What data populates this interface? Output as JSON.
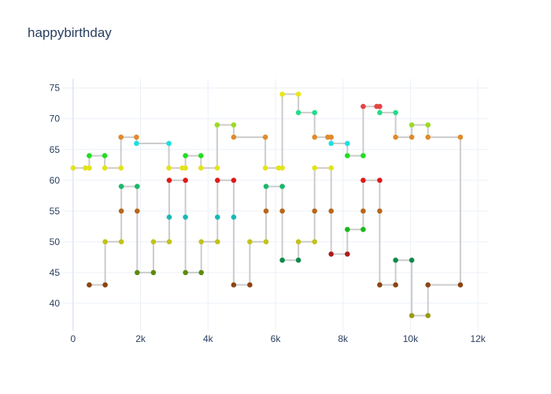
{
  "chart_data": {
    "type": "line",
    "title": "happybirthday",
    "xlabel": "",
    "ylabel": "",
    "xlim": [
      -300,
      12300
    ],
    "ylim": [
      35.5,
      76.5
    ],
    "x_ticks": [
      0,
      2000,
      4000,
      6000,
      8000,
      10000,
      12000
    ],
    "x_tick_labels": [
      "0",
      "2k",
      "4k",
      "6k",
      "8k",
      "10k",
      "12k"
    ],
    "y_ticks": [
      40,
      45,
      50,
      55,
      60,
      65,
      70,
      75
    ],
    "y_tick_labels": [
      "40",
      "45",
      "50",
      "55",
      "60",
      "65",
      "70",
      "75"
    ],
    "grid": true,
    "line_color": "#cccccc",
    "points": [
      {
        "x": 0,
        "y": 62,
        "color": "#e3e31a"
      },
      {
        "x": 360,
        "y": 62,
        "color": "#e3e31a"
      },
      {
        "x": 480,
        "y": 62,
        "color": "#e3e31a"
      },
      {
        "x": 480,
        "y": 64,
        "color": "#22dd22"
      },
      {
        "x": 940,
        "y": 64,
        "color": "#22dd22"
      },
      {
        "x": 940,
        "y": 62,
        "color": "#e3e31a"
      },
      {
        "x": 1420,
        "y": 62,
        "color": "#e3e31a"
      },
      {
        "x": 1420,
        "y": 67,
        "color": "#e08a2a"
      },
      {
        "x": 1880,
        "y": 67,
        "color": "#e08a2a"
      },
      {
        "x": 1880,
        "y": 66,
        "color": "#1ce0e0"
      },
      {
        "x": 2840,
        "y": 66,
        "color": "#1ce0e0"
      },
      {
        "x": 2840,
        "y": 62,
        "color": "#e3e31a"
      },
      {
        "x": 3240,
        "y": 62,
        "color": "#e3e31a"
      },
      {
        "x": 3330,
        "y": 62,
        "color": "#e3e31a"
      },
      {
        "x": 3330,
        "y": 64,
        "color": "#22dd22"
      },
      {
        "x": 3790,
        "y": 64,
        "color": "#22dd22"
      },
      {
        "x": 3790,
        "y": 62,
        "color": "#e3e31a"
      },
      {
        "x": 4270,
        "y": 62,
        "color": "#e3e31a"
      },
      {
        "x": 4270,
        "y": 69,
        "color": "#9bdc22"
      },
      {
        "x": 4760,
        "y": 69,
        "color": "#9bdc22"
      },
      {
        "x": 4760,
        "y": 67,
        "color": "#e08a2a"
      },
      {
        "x": 5700,
        "y": 67,
        "color": "#e08a2a"
      },
      {
        "x": 5700,
        "y": 62,
        "color": "#e3e31a"
      },
      {
        "x": 6090,
        "y": 62,
        "color": "#e3e31a"
      },
      {
        "x": 6200,
        "y": 62,
        "color": "#e3e31a"
      },
      {
        "x": 6200,
        "y": 74,
        "color": "#e8e81c"
      },
      {
        "x": 6680,
        "y": 74,
        "color": "#e8e81c"
      },
      {
        "x": 6680,
        "y": 71,
        "color": "#22dd88"
      },
      {
        "x": 7160,
        "y": 71,
        "color": "#22dd88"
      },
      {
        "x": 7160,
        "y": 67,
        "color": "#e08a2a"
      },
      {
        "x": 7550,
        "y": 67,
        "color": "#e08a2a"
      },
      {
        "x": 7650,
        "y": 67,
        "color": "#e08a2a"
      },
      {
        "x": 7650,
        "y": 66,
        "color": "#1ce0e0"
      },
      {
        "x": 8130,
        "y": 66,
        "color": "#1ce0e0"
      },
      {
        "x": 8130,
        "y": 64,
        "color": "#22dd22"
      },
      {
        "x": 8600,
        "y": 64,
        "color": "#22dd22"
      },
      {
        "x": 8600,
        "y": 72,
        "color": "#e54545"
      },
      {
        "x": 9000,
        "y": 72,
        "color": "#e54545"
      },
      {
        "x": 9090,
        "y": 72,
        "color": "#e54545"
      },
      {
        "x": 9090,
        "y": 71,
        "color": "#22dd88"
      },
      {
        "x": 9560,
        "y": 71,
        "color": "#22dd88"
      },
      {
        "x": 9560,
        "y": 67,
        "color": "#e08a2a"
      },
      {
        "x": 10040,
        "y": 67,
        "color": "#e08a2a"
      },
      {
        "x": 10040,
        "y": 69,
        "color": "#9bdc22"
      },
      {
        "x": 10520,
        "y": 69,
        "color": "#9bdc22"
      },
      {
        "x": 10520,
        "y": 67,
        "color": "#e08a2a"
      },
      {
        "x": 11480,
        "y": 67,
        "color": "#e08a2a"
      },
      {
        "x": 11480,
        "y": 43,
        "color": "#8b4513"
      },
      {
        "x": 10520,
        "y": 43,
        "color": "#8b4513"
      },
      {
        "x": 10520,
        "y": 38,
        "color": "#9a9a10"
      },
      {
        "x": 10040,
        "y": 38,
        "color": "#9a9a10"
      },
      {
        "x": 10040,
        "y": 47,
        "color": "#0e8a4a"
      },
      {
        "x": 9560,
        "y": 47,
        "color": "#0e8a4a"
      },
      {
        "x": 9560,
        "y": 43,
        "color": "#8b4513"
      },
      {
        "x": 9090,
        "y": 43,
        "color": "#8b4513"
      },
      {
        "x": 9090,
        "y": 55,
        "color": "#b8661a"
      },
      {
        "x": 9090,
        "y": 60,
        "color": "#e01a1a"
      },
      {
        "x": 8600,
        "y": 60,
        "color": "#e01a1a"
      },
      {
        "x": 8600,
        "y": 55,
        "color": "#b8661a"
      },
      {
        "x": 8600,
        "y": 52,
        "color": "#1ab81a"
      },
      {
        "x": 8130,
        "y": 52,
        "color": "#1ab81a"
      },
      {
        "x": 8130,
        "y": 48,
        "color": "#b01a1a"
      },
      {
        "x": 7650,
        "y": 48,
        "color": "#b01a1a"
      },
      {
        "x": 7650,
        "y": 55,
        "color": "#b8661a"
      },
      {
        "x": 7650,
        "y": 62,
        "color": "#e3e31a"
      },
      {
        "x": 7160,
        "y": 62,
        "color": "#e3e31a"
      },
      {
        "x": 7160,
        "y": 55,
        "color": "#b8661a"
      },
      {
        "x": 7160,
        "y": 50,
        "color": "#c2c21a"
      },
      {
        "x": 6680,
        "y": 50,
        "color": "#c2c21a"
      },
      {
        "x": 6680,
        "y": 47,
        "color": "#0e8a4a"
      },
      {
        "x": 6200,
        "y": 47,
        "color": "#0e8a4a"
      },
      {
        "x": 6200,
        "y": 55,
        "color": "#b8661a"
      },
      {
        "x": 6200,
        "y": 59,
        "color": "#1ab86a"
      },
      {
        "x": 5720,
        "y": 59,
        "color": "#1ab86a"
      },
      {
        "x": 5720,
        "y": 55,
        "color": "#b8661a"
      },
      {
        "x": 5720,
        "y": 50,
        "color": "#c2c21a"
      },
      {
        "x": 5240,
        "y": 50,
        "color": "#c2c21a"
      },
      {
        "x": 5240,
        "y": 43,
        "color": "#8b4513"
      },
      {
        "x": 4760,
        "y": 43,
        "color": "#8b4513"
      },
      {
        "x": 4760,
        "y": 54,
        "color": "#1ab8b8"
      },
      {
        "x": 4760,
        "y": 60,
        "color": "#e01a1a"
      },
      {
        "x": 4280,
        "y": 60,
        "color": "#e01a1a"
      },
      {
        "x": 4280,
        "y": 54,
        "color": "#1ab8b8"
      },
      {
        "x": 4280,
        "y": 50,
        "color": "#c2c21a"
      },
      {
        "x": 3800,
        "y": 50,
        "color": "#c2c21a"
      },
      {
        "x": 3800,
        "y": 45,
        "color": "#5c8a10"
      },
      {
        "x": 3330,
        "y": 45,
        "color": "#5c8a10"
      },
      {
        "x": 3330,
        "y": 54,
        "color": "#1ab8b8"
      },
      {
        "x": 3330,
        "y": 60,
        "color": "#e01a1a"
      },
      {
        "x": 2850,
        "y": 60,
        "color": "#e01a1a"
      },
      {
        "x": 2850,
        "y": 54,
        "color": "#1ab8b8"
      },
      {
        "x": 2850,
        "y": 50,
        "color": "#c2c21a"
      },
      {
        "x": 2380,
        "y": 50,
        "color": "#c2c21a"
      },
      {
        "x": 2380,
        "y": 45,
        "color": "#5c8a10"
      },
      {
        "x": 1900,
        "y": 45,
        "color": "#5c8a10"
      },
      {
        "x": 1900,
        "y": 55,
        "color": "#b8661a"
      },
      {
        "x": 1900,
        "y": 59,
        "color": "#1ab86a"
      },
      {
        "x": 1430,
        "y": 59,
        "color": "#1ab86a"
      },
      {
        "x": 1430,
        "y": 55,
        "color": "#b8661a"
      },
      {
        "x": 1430,
        "y": 50,
        "color": "#c2c21a"
      },
      {
        "x": 950,
        "y": 50,
        "color": "#c2c21a"
      },
      {
        "x": 950,
        "y": 43,
        "color": "#8b4513"
      },
      {
        "x": 480,
        "y": 43,
        "color": "#8b4513"
      }
    ]
  }
}
